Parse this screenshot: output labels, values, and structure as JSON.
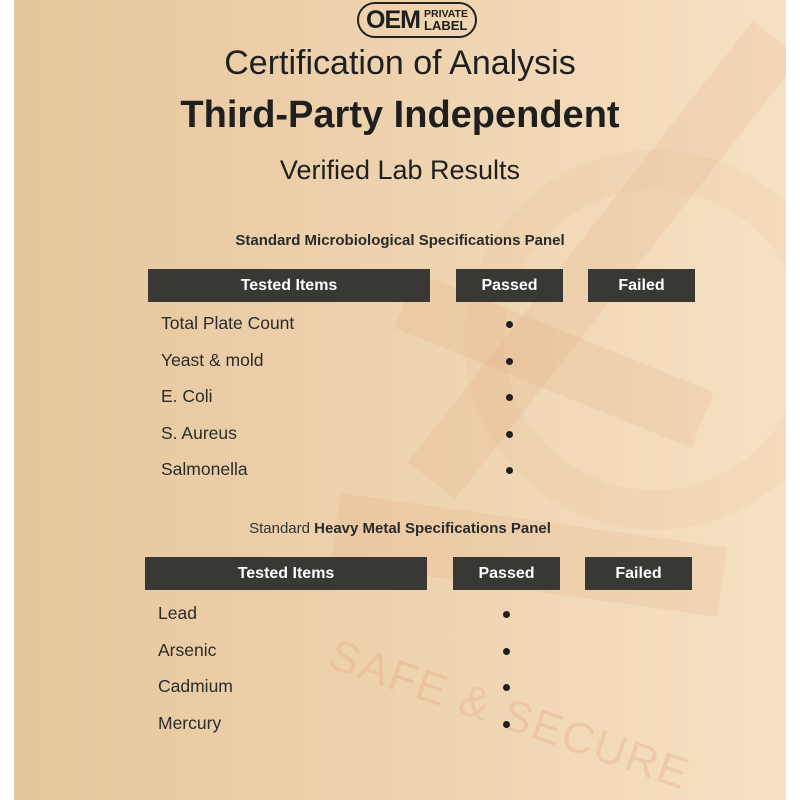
{
  "logo": {
    "main": "OEM",
    "line1": "PRIVATE",
    "line2": "LABEL"
  },
  "header": {
    "title": "Certification of Analysis",
    "subtitle": "Third-Party Independent",
    "tagline": "Verified Lab Results"
  },
  "watermark": "SAFE & SECURE",
  "panels": [
    {
      "title_prefix": "Standard Microbiological Specifications Panel",
      "title_bold": "",
      "columns": [
        "Tested Items",
        "Passed",
        "Failed"
      ],
      "rows": [
        {
          "item": "Total Plate Count",
          "result": "passed"
        },
        {
          "item": "Yeast & mold",
          "result": "passed"
        },
        {
          "item": "E. Coli",
          "result": "passed"
        },
        {
          "item": "S. Aureus",
          "result": "passed"
        },
        {
          "item": "Salmonella",
          "result": "passed"
        }
      ]
    },
    {
      "title_prefix": "Standard ",
      "title_bold": "Heavy Metal Specifications Panel",
      "columns": [
        "Tested Items",
        "Passed",
        "Failed"
      ],
      "rows": [
        {
          "item": "Lead",
          "result": "passed"
        },
        {
          "item": "Arsenic",
          "result": "passed"
        },
        {
          "item": "Cadmium",
          "result": "passed"
        },
        {
          "item": "Mercury",
          "result": "passed"
        }
      ]
    }
  ],
  "colors": {
    "header_bg": "#3a3835",
    "accent_watermark": "#e08c64"
  }
}
